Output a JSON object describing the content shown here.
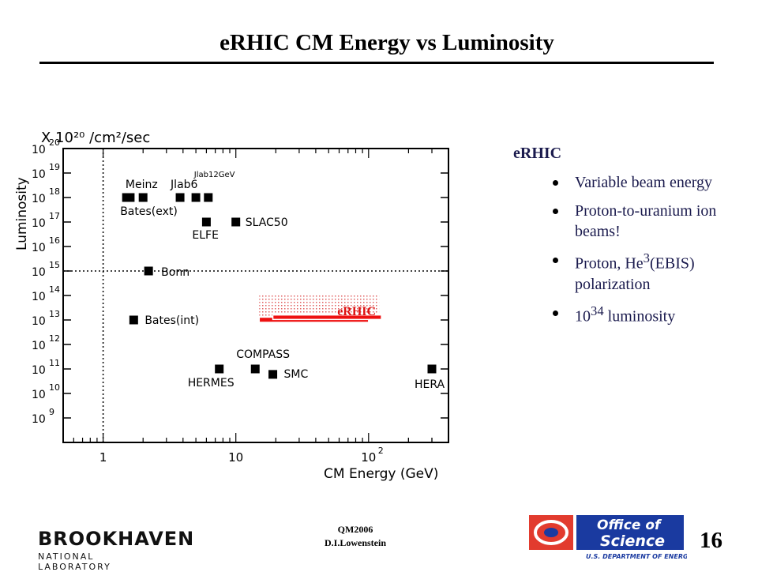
{
  "slide": {
    "title": "eRHIC CM Energy vs Luminosity",
    "page_number": "16",
    "footer_line1": "QM2006",
    "footer_line2": "D.I.Lowenstein",
    "bnl_logo_text": "BROOKHAVEN",
    "bnl_logo_sub": "NATIONAL LABORATORY",
    "doe_logo_line1": "Office of",
    "doe_logo_line2": "Science",
    "doe_logo_line3": "U.S. DEPARTMENT OF ENERGY"
  },
  "bullets": {
    "heading": "eRHIC",
    "items": [
      {
        "text": "Variable beam energy"
      },
      {
        "text": "Proton-to-uranium ion beams!"
      },
      {
        "pre": "Proton, He",
        "sup": "3",
        "post": "(EBIS) polarization"
      },
      {
        "pre": "10",
        "sup": "34",
        "post": " luminosity"
      }
    ]
  },
  "chart_data": {
    "type": "scatter",
    "xlabel": "CM Energy (GeV)",
    "ylabel": "Luminosity",
    "unit_label": "X 10²⁰ /cm²/sec",
    "x_scale": "log",
    "y_scale": "log",
    "xlim": [
      0.5,
      400
    ],
    "ylim": [
      100000000.0,
      1e+20
    ],
    "x_ticks": [
      {
        "value": 1,
        "label": "1"
      },
      {
        "value": 10,
        "label": "10"
      },
      {
        "value": 100,
        "label": "10",
        "sup": "2"
      }
    ],
    "y_ticks": [
      9,
      10,
      11,
      12,
      13,
      14,
      15,
      16,
      17,
      18,
      19,
      20
    ],
    "reference_lines": {
      "x": 1,
      "y": 1000000000000000.0,
      "style": "dotted"
    },
    "points": [
      {
        "label": "Meinz",
        "x": 1.6,
        "y": 1e+18
      },
      {
        "label": "",
        "x": 2.0,
        "y": 1e+18
      },
      {
        "label": "Jlab6",
        "x": 3.8,
        "y": 1e+18
      },
      {
        "label": "",
        "x": 5.0,
        "y": 1e+18
      },
      {
        "label": "Jlab12GeV",
        "x": 6.2,
        "y": 1e+18
      },
      {
        "label": "Bates(ext)",
        "x": 1.5,
        "y": 1e+18
      },
      {
        "label": "ELFE",
        "x": 6.0,
        "y": 1e+17
      },
      {
        "label": "SLAC50",
        "x": 10,
        "y": 1e+17
      },
      {
        "label": "Bonn",
        "x": 2.2,
        "y": 1000000000000000.0
      },
      {
        "label": "Bates(int)",
        "x": 1.7,
        "y": 10000000000000.0
      },
      {
        "label": "HERMES",
        "x": 7.5,
        "y": 100000000000.0
      },
      {
        "label": "COMPASS",
        "x": 14,
        "y": 100000000000.0
      },
      {
        "label": "SMC",
        "x": 19,
        "y": 60000000000.0
      },
      {
        "label": "HERA",
        "x": 300,
        "y": 100000000000.0
      }
    ],
    "erhic": {
      "label": "eRHIC",
      "region": {
        "xmin": 15,
        "xmax": 120,
        "ymin": 10000000000000.0,
        "ymax": 100000000000000.0
      },
      "bands": [
        {
          "xmin": 15,
          "xmax": 100,
          "ymin": 8000000000000.0,
          "ymax": 13000000000000.0
        },
        {
          "xmin": 19,
          "xmax": 125,
          "ymin": 10500000000000.0,
          "ymax": 16000000000000.0
        }
      ]
    },
    "colors": {
      "erhic": "#ee1111",
      "erhic_label": "#dd1111",
      "marker": "#000000"
    }
  }
}
